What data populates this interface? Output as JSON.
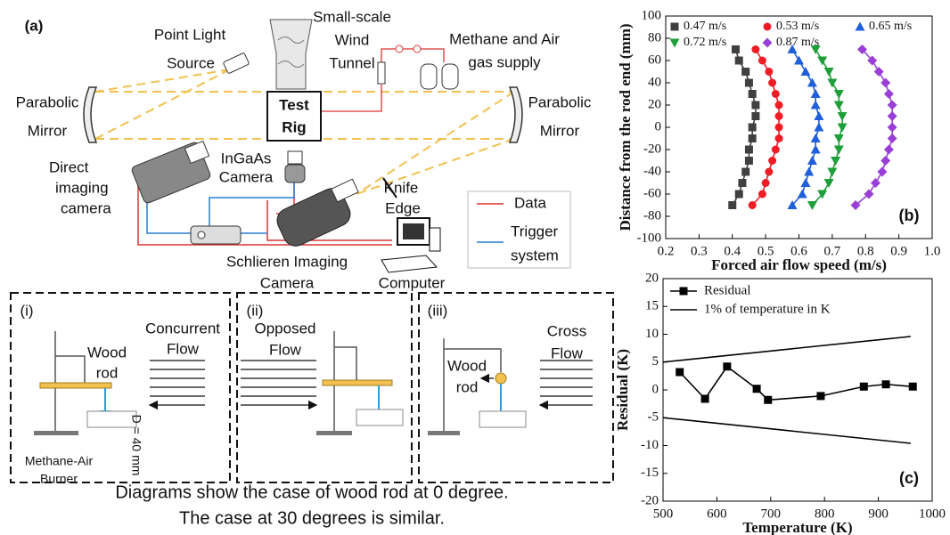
{
  "panel_a": {
    "label": "(a)",
    "point_light": [
      "Point Light",
      "Source"
    ],
    "wind_tunnel": [
      "Small-scale",
      "Wind",
      "Tunnel"
    ],
    "gas_supply": [
      "Methane and Air",
      "gas supply"
    ],
    "mirror_left": [
      "Parabolic",
      "Mirror"
    ],
    "mirror_right": [
      "Parabolic",
      "Mirror"
    ],
    "test_rig": [
      "Test",
      "Rig"
    ],
    "direct_camera": [
      "Direct",
      "imaging",
      "camera"
    ],
    "ingaas_camera": [
      "InGaAs",
      "Camera"
    ],
    "knife_edge": [
      "Knife",
      "Edge"
    ],
    "legend_data": "Data",
    "legend_trigger": [
      "Trigger",
      "system"
    ],
    "schlieren_camera": [
      "Schlieren Imaging",
      "Camera"
    ],
    "computer": "Computer"
  },
  "cases": [
    {
      "label": "(i)",
      "flow": [
        "Concurrent",
        "Flow"
      ],
      "rod": [
        "Wood",
        "rod"
      ],
      "burner": [
        "Methane-Air",
        "Burner"
      ],
      "distance": "D = 40 mm"
    },
    {
      "label": "(ii)",
      "flow": [
        "Opposed",
        "Flow"
      ]
    },
    {
      "label": "(iii)",
      "flow": [
        "Cross",
        "Flow"
      ],
      "rod": [
        "Wood",
        "rod"
      ]
    }
  ],
  "caption": [
    "Diagrams show the case of wood rod at 0 degree.",
    "The case  at 30 degrees is similar."
  ],
  "chart_data": [
    {
      "type": "scatter",
      "panel_label": "(b)",
      "x_label": "Forced air flow speed (m/s)",
      "y_label": "Distance from the rod end (mm)",
      "xlim": [
        0.2,
        1.0
      ],
      "xticks": [
        0.2,
        0.3,
        0.4,
        0.5,
        0.6,
        0.7,
        0.8,
        0.9,
        {
          "value": 1,
          "label": "1.0"
        }
      ],
      "ylim": [
        -100,
        100
      ],
      "yticks": [
        -100,
        -80,
        -60,
        -40,
        -20,
        0,
        20,
        40,
        60,
        80,
        100
      ],
      "legend": "top",
      "series": [
        {
          "name": "0.47 m/s",
          "color": "#404040",
          "marker": "square",
          "x": [
            0.4,
            0.42,
            0.43,
            0.44,
            0.45,
            0.45,
            0.46,
            0.46,
            0.47,
            0.47,
            0.46,
            0.45,
            0.44,
            0.42,
            0.41
          ],
          "y": [
            -70,
            -60,
            -50,
            -40,
            -30,
            -20,
            -10,
            0,
            10,
            20,
            30,
            40,
            50,
            60,
            70
          ]
        },
        {
          "name": "0.53 m/s",
          "color": "#ee1c25",
          "marker": "circle",
          "x": [
            0.46,
            0.49,
            0.5,
            0.51,
            0.52,
            0.53,
            0.54,
            0.54,
            0.54,
            0.54,
            0.53,
            0.52,
            0.51,
            0.49,
            0.47
          ],
          "y": [
            -70,
            -60,
            -50,
            -40,
            -30,
            -20,
            -10,
            0,
            10,
            20,
            30,
            40,
            50,
            60,
            70
          ]
        },
        {
          "name": "0.65 m/s",
          "color": "#1f5fd8",
          "marker": "triangle-up",
          "x": [
            0.58,
            0.61,
            0.62,
            0.63,
            0.64,
            0.65,
            0.65,
            0.66,
            0.66,
            0.65,
            0.65,
            0.64,
            0.62,
            0.6,
            0.58
          ],
          "y": [
            -70,
            -60,
            -50,
            -40,
            -30,
            -20,
            -10,
            0,
            10,
            20,
            30,
            40,
            50,
            60,
            70
          ]
        },
        {
          "name": "0.72 m/s",
          "color": "#1e9f3a",
          "marker": "triangle-down",
          "x": [
            0.64,
            0.67,
            0.69,
            0.7,
            0.71,
            0.72,
            0.72,
            0.73,
            0.73,
            0.72,
            0.72,
            0.7,
            0.69,
            0.67,
            0.65
          ],
          "y": [
            -70,
            -60,
            -50,
            -40,
            -30,
            -20,
            -10,
            0,
            10,
            20,
            30,
            40,
            50,
            60,
            70
          ]
        },
        {
          "name": "0.87 m/s",
          "color": "#9a3fd6",
          "marker": "diamond",
          "x": [
            0.77,
            0.81,
            0.83,
            0.85,
            0.86,
            0.87,
            0.88,
            0.88,
            0.88,
            0.88,
            0.87,
            0.86,
            0.84,
            0.82,
            0.79
          ],
          "y": [
            -70,
            -60,
            -50,
            -40,
            -30,
            -20,
            -10,
            0,
            10,
            20,
            30,
            40,
            50,
            60,
            70
          ]
        }
      ]
    },
    {
      "type": "line",
      "panel_label": "(c)",
      "x_label": "Temperature (K)",
      "y_label": "Residual (K)",
      "xlim": [
        500,
        1000
      ],
      "xticks": [
        500,
        600,
        700,
        800,
        900,
        1000
      ],
      "ylim": [
        -20,
        20
      ],
      "yticks": [
        -20,
        -15,
        -10,
        -5,
        0,
        5,
        10,
        15,
        20
      ],
      "legend": "upper left",
      "series": [
        {
          "name": "Residual",
          "color": "#000000",
          "marker": "square",
          "x": [
            531,
            578,
            619,
            674,
            695,
            793,
            873,
            914,
            964
          ],
          "y": [
            3.2,
            -1.6,
            4.2,
            0.2,
            -1.8,
            -1.1,
            0.6,
            1.0,
            0.6
          ]
        },
        {
          "name": "1% of temperature in K",
          "color": "#000000",
          "x": [
            500,
            960
          ],
          "y": [
            5,
            9.6
          ],
          "y_mirror": [
            -5,
            -9.6
          ]
        }
      ]
    }
  ]
}
